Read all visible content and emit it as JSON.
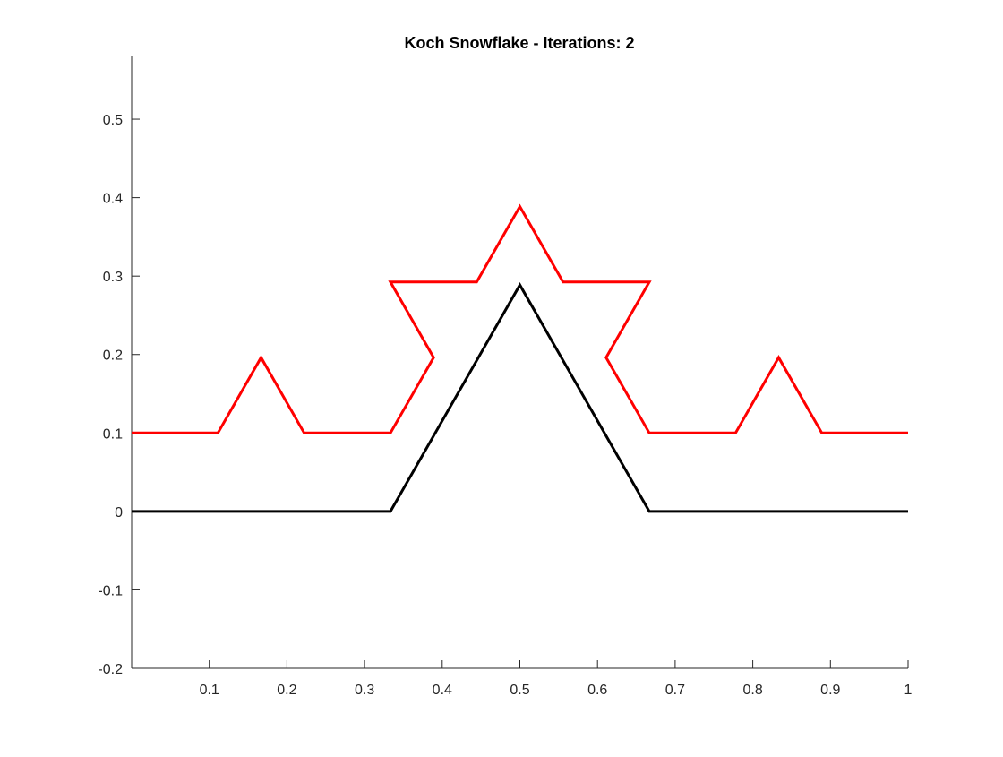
{
  "chart_data": {
    "type": "line",
    "title": "Koch Snowflake - Iterations: 2",
    "xlabel": "",
    "ylabel": "",
    "xlim": [
      0,
      1
    ],
    "ylim": [
      -0.2,
      0.58
    ],
    "x_ticks": [
      0.1,
      0.2,
      0.3,
      0.4,
      0.5,
      0.6,
      0.7,
      0.8,
      0.9,
      1
    ],
    "x_tick_labels": [
      "0.1",
      "0.2",
      "0.3",
      "0.4",
      "0.5",
      "0.6",
      "0.7",
      "0.8",
      "0.9",
      "1"
    ],
    "y_ticks": [
      -0.2,
      -0.1,
      0,
      0.1,
      0.2,
      0.3,
      0.4,
      0.5
    ],
    "y_tick_labels": [
      "-0.2",
      "-0.1",
      "0",
      "0.1",
      "0.2",
      "0.3",
      "0.4",
      "0.5"
    ],
    "grid": false,
    "series": [
      {
        "color": "#000000",
        "x": [
          0,
          0.3333,
          0.5,
          0.6667,
          1
        ],
        "y": [
          0,
          0,
          0.2887,
          0,
          0
        ]
      },
      {
        "color": "#ff0000",
        "x": [
          0,
          0.1111,
          0.1667,
          0.2222,
          0.3333,
          0.3889,
          0.3333,
          0.4444,
          0.5,
          0.5556,
          0.6667,
          0.6111,
          0.6667,
          0.7778,
          0.8333,
          0.8889,
          1
        ],
        "y": [
          0.1,
          0.1,
          0.1962,
          0.1,
          0.1,
          0.1962,
          0.2925,
          0.2925,
          0.3887,
          0.2925,
          0.2925,
          0.1962,
          0.1,
          0.1,
          0.1962,
          0.1,
          0.1
        ]
      }
    ]
  }
}
